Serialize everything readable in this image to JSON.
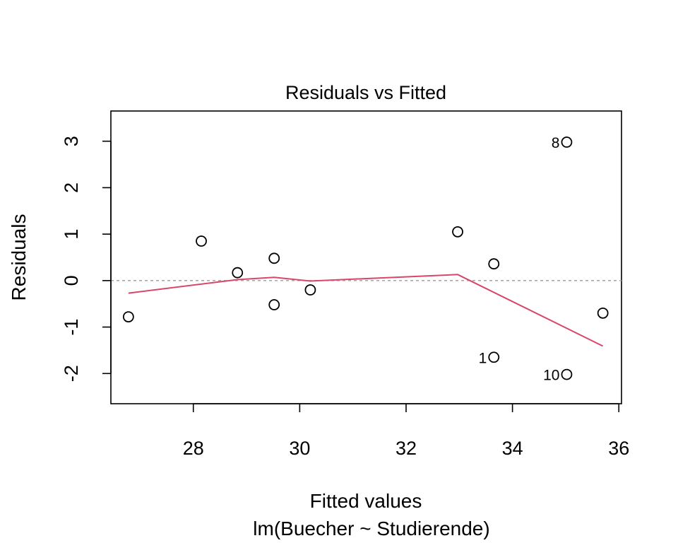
{
  "chart_data": {
    "type": "scatter",
    "title": "Residuals vs Fitted",
    "xlabel": "Fitted values",
    "subtitle": "lm(Buecher ~ Studierende)",
    "ylabel": "Residuals",
    "xlim": [
      26.45,
      36.05
    ],
    "ylim": [
      -2.65,
      3.65
    ],
    "x_ticks": [
      28,
      30,
      32,
      34,
      36
    ],
    "y_ticks": [
      -2,
      -1,
      0,
      1,
      2,
      3
    ],
    "x_tick_labels": [
      "28",
      "30",
      "32",
      "34",
      "36"
    ],
    "y_tick_labels": [
      "-2",
      "-1",
      "0",
      "1",
      "2",
      "3"
    ],
    "grid": false,
    "reference_line": {
      "y": 0,
      "style": "dashed",
      "color": "#aaaaaa"
    },
    "points": [
      {
        "x": 33.65,
        "y": -1.65,
        "label": "1"
      },
      {
        "x": 28.15,
        "y": 0.85,
        "label": ""
      },
      {
        "x": 29.52,
        "y": 0.48,
        "label": ""
      },
      {
        "x": 28.83,
        "y": 0.17,
        "label": ""
      },
      {
        "x": 26.78,
        "y": -0.78,
        "label": ""
      },
      {
        "x": 29.52,
        "y": -0.52,
        "label": ""
      },
      {
        "x": 30.2,
        "y": -0.2,
        "label": ""
      },
      {
        "x": 35.02,
        "y": 2.98,
        "label": "8"
      },
      {
        "x": 35.7,
        "y": -0.7,
        "label": ""
      },
      {
        "x": 35.02,
        "y": -2.02,
        "label": "10"
      },
      {
        "x": 32.97,
        "y": 1.05,
        "label": ""
      },
      {
        "x": 33.65,
        "y": 0.36,
        "label": ""
      }
    ],
    "smooth_line": {
      "color": "#d9466b",
      "x": [
        26.78,
        28.83,
        29.52,
        30.2,
        32.97,
        35.7
      ],
      "y": [
        -0.27,
        0.02,
        0.07,
        -0.01,
        0.13,
        -1.41
      ]
    }
  }
}
